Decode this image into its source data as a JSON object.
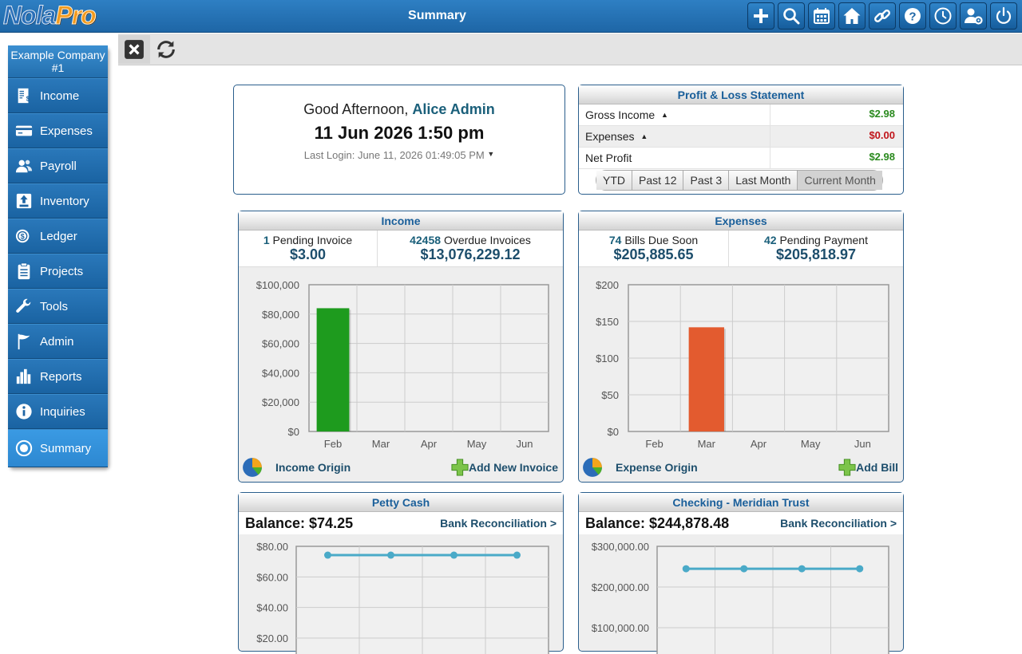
{
  "app": {
    "logo_part1": "Nola",
    "logo_part2": "Pro",
    "title": "Summary"
  },
  "toolbar_icons": [
    "add-icon",
    "search-icon",
    "calendar-icon",
    "home-icon",
    "link-icon",
    "help-icon",
    "clock-icon",
    "user-settings-icon",
    "power-icon"
  ],
  "sidebar": {
    "company": "Example Company #1",
    "items": [
      {
        "label": "Income",
        "icon": "invoice-icon"
      },
      {
        "label": "Expenses",
        "icon": "credit-card-icon"
      },
      {
        "label": "Payroll",
        "icon": "people-icon"
      },
      {
        "label": "Inventory",
        "icon": "box-icon"
      },
      {
        "label": "Ledger",
        "icon": "coins-icon"
      },
      {
        "label": "Projects",
        "icon": "clipboard-icon"
      },
      {
        "label": "Tools",
        "icon": "wrench-icon"
      },
      {
        "label": "Admin",
        "icon": "flag-icon"
      },
      {
        "label": "Reports",
        "icon": "bar-chart-icon"
      },
      {
        "label": "Inquiries",
        "icon": "info-icon"
      },
      {
        "label": "Summary",
        "icon": "target-icon",
        "active": true
      }
    ]
  },
  "greeting": {
    "prefix": "Good Afternoon,",
    "user": "Alice Admin",
    "date": "11 Jun 2026 1:50 pm",
    "last_login": "Last Login: June 11, 2026 01:49:05 PM"
  },
  "pl": {
    "title": "Profit & Loss Statement",
    "rows": [
      {
        "label": "Gross Income",
        "value": "$2.98",
        "color": "#2a8a1e"
      },
      {
        "label": "Expenses",
        "value": "$0.00",
        "color": "#c0141a"
      },
      {
        "label": "Net Profit",
        "value": "$2.98",
        "color": "#2a8a1e"
      }
    ],
    "tabs": [
      "YTD",
      "Past 12",
      "Past 3",
      "Last Month",
      "Current Month"
    ]
  },
  "income": {
    "title": "Income",
    "stat1_count": "1",
    "stat1_label": "Pending Invoice",
    "stat1_amount": "$3.00",
    "stat2_count": "42458",
    "stat2_label": "Overdue Invoices",
    "stat2_amount": "$13,076,229.12",
    "origin_label": "Income Origin",
    "add_label": "Add New Invoice"
  },
  "expenses": {
    "title": "Expenses",
    "stat1_count": "74",
    "stat1_label": "Bills Due Soon",
    "stat1_amount": "$205,885.65",
    "stat2_count": "42",
    "stat2_label": "Pending Payment",
    "stat2_amount": "$205,818.97",
    "origin_label": "Expense Origin",
    "add_label": "Add Bill"
  },
  "petty": {
    "title": "Petty Cash",
    "balance": "Balance: $74.25",
    "recon": "Bank Reconciliation >"
  },
  "checking": {
    "title": "Checking - Meridian Trust",
    "balance": "Balance: $244,878.48",
    "recon": "Bank Reconciliation >"
  },
  "chart_data": [
    {
      "type": "bar",
      "categories": [
        "Feb",
        "Mar",
        "Apr",
        "May",
        "Jun"
      ],
      "values": [
        84000,
        0,
        0,
        0,
        0
      ],
      "ylim": [
        0,
        100000
      ],
      "yticks": [
        "$0",
        "$20,000",
        "$40,000",
        "$60,000",
        "$80,000",
        "$100,000"
      ],
      "color": "#1e9b1e"
    },
    {
      "type": "bar",
      "categories": [
        "Feb",
        "Mar",
        "Apr",
        "May",
        "Jun"
      ],
      "values": [
        0,
        142,
        0,
        0,
        0
      ],
      "ylim": [
        0,
        200
      ],
      "yticks": [
        "$0",
        "$50",
        "$100",
        "$150",
        "$200"
      ],
      "color": "#e35b2f"
    },
    {
      "type": "line",
      "points": [
        74.25,
        74.25,
        74.25,
        74.25
      ],
      "ylim": [
        20,
        80
      ],
      "yticks": [
        "$20.00",
        "$40.00",
        "$60.00",
        "$80.00"
      ],
      "color": "#4aaac8"
    },
    {
      "type": "line",
      "points": [
        244878.48,
        244878.48,
        244878.48,
        244878.48
      ],
      "ylim": [
        100000,
        300000
      ],
      "yticks": [
        "$100,000.00",
        "$200,000.00",
        "$300,000.00"
      ],
      "color": "#4aaac8"
    }
  ]
}
